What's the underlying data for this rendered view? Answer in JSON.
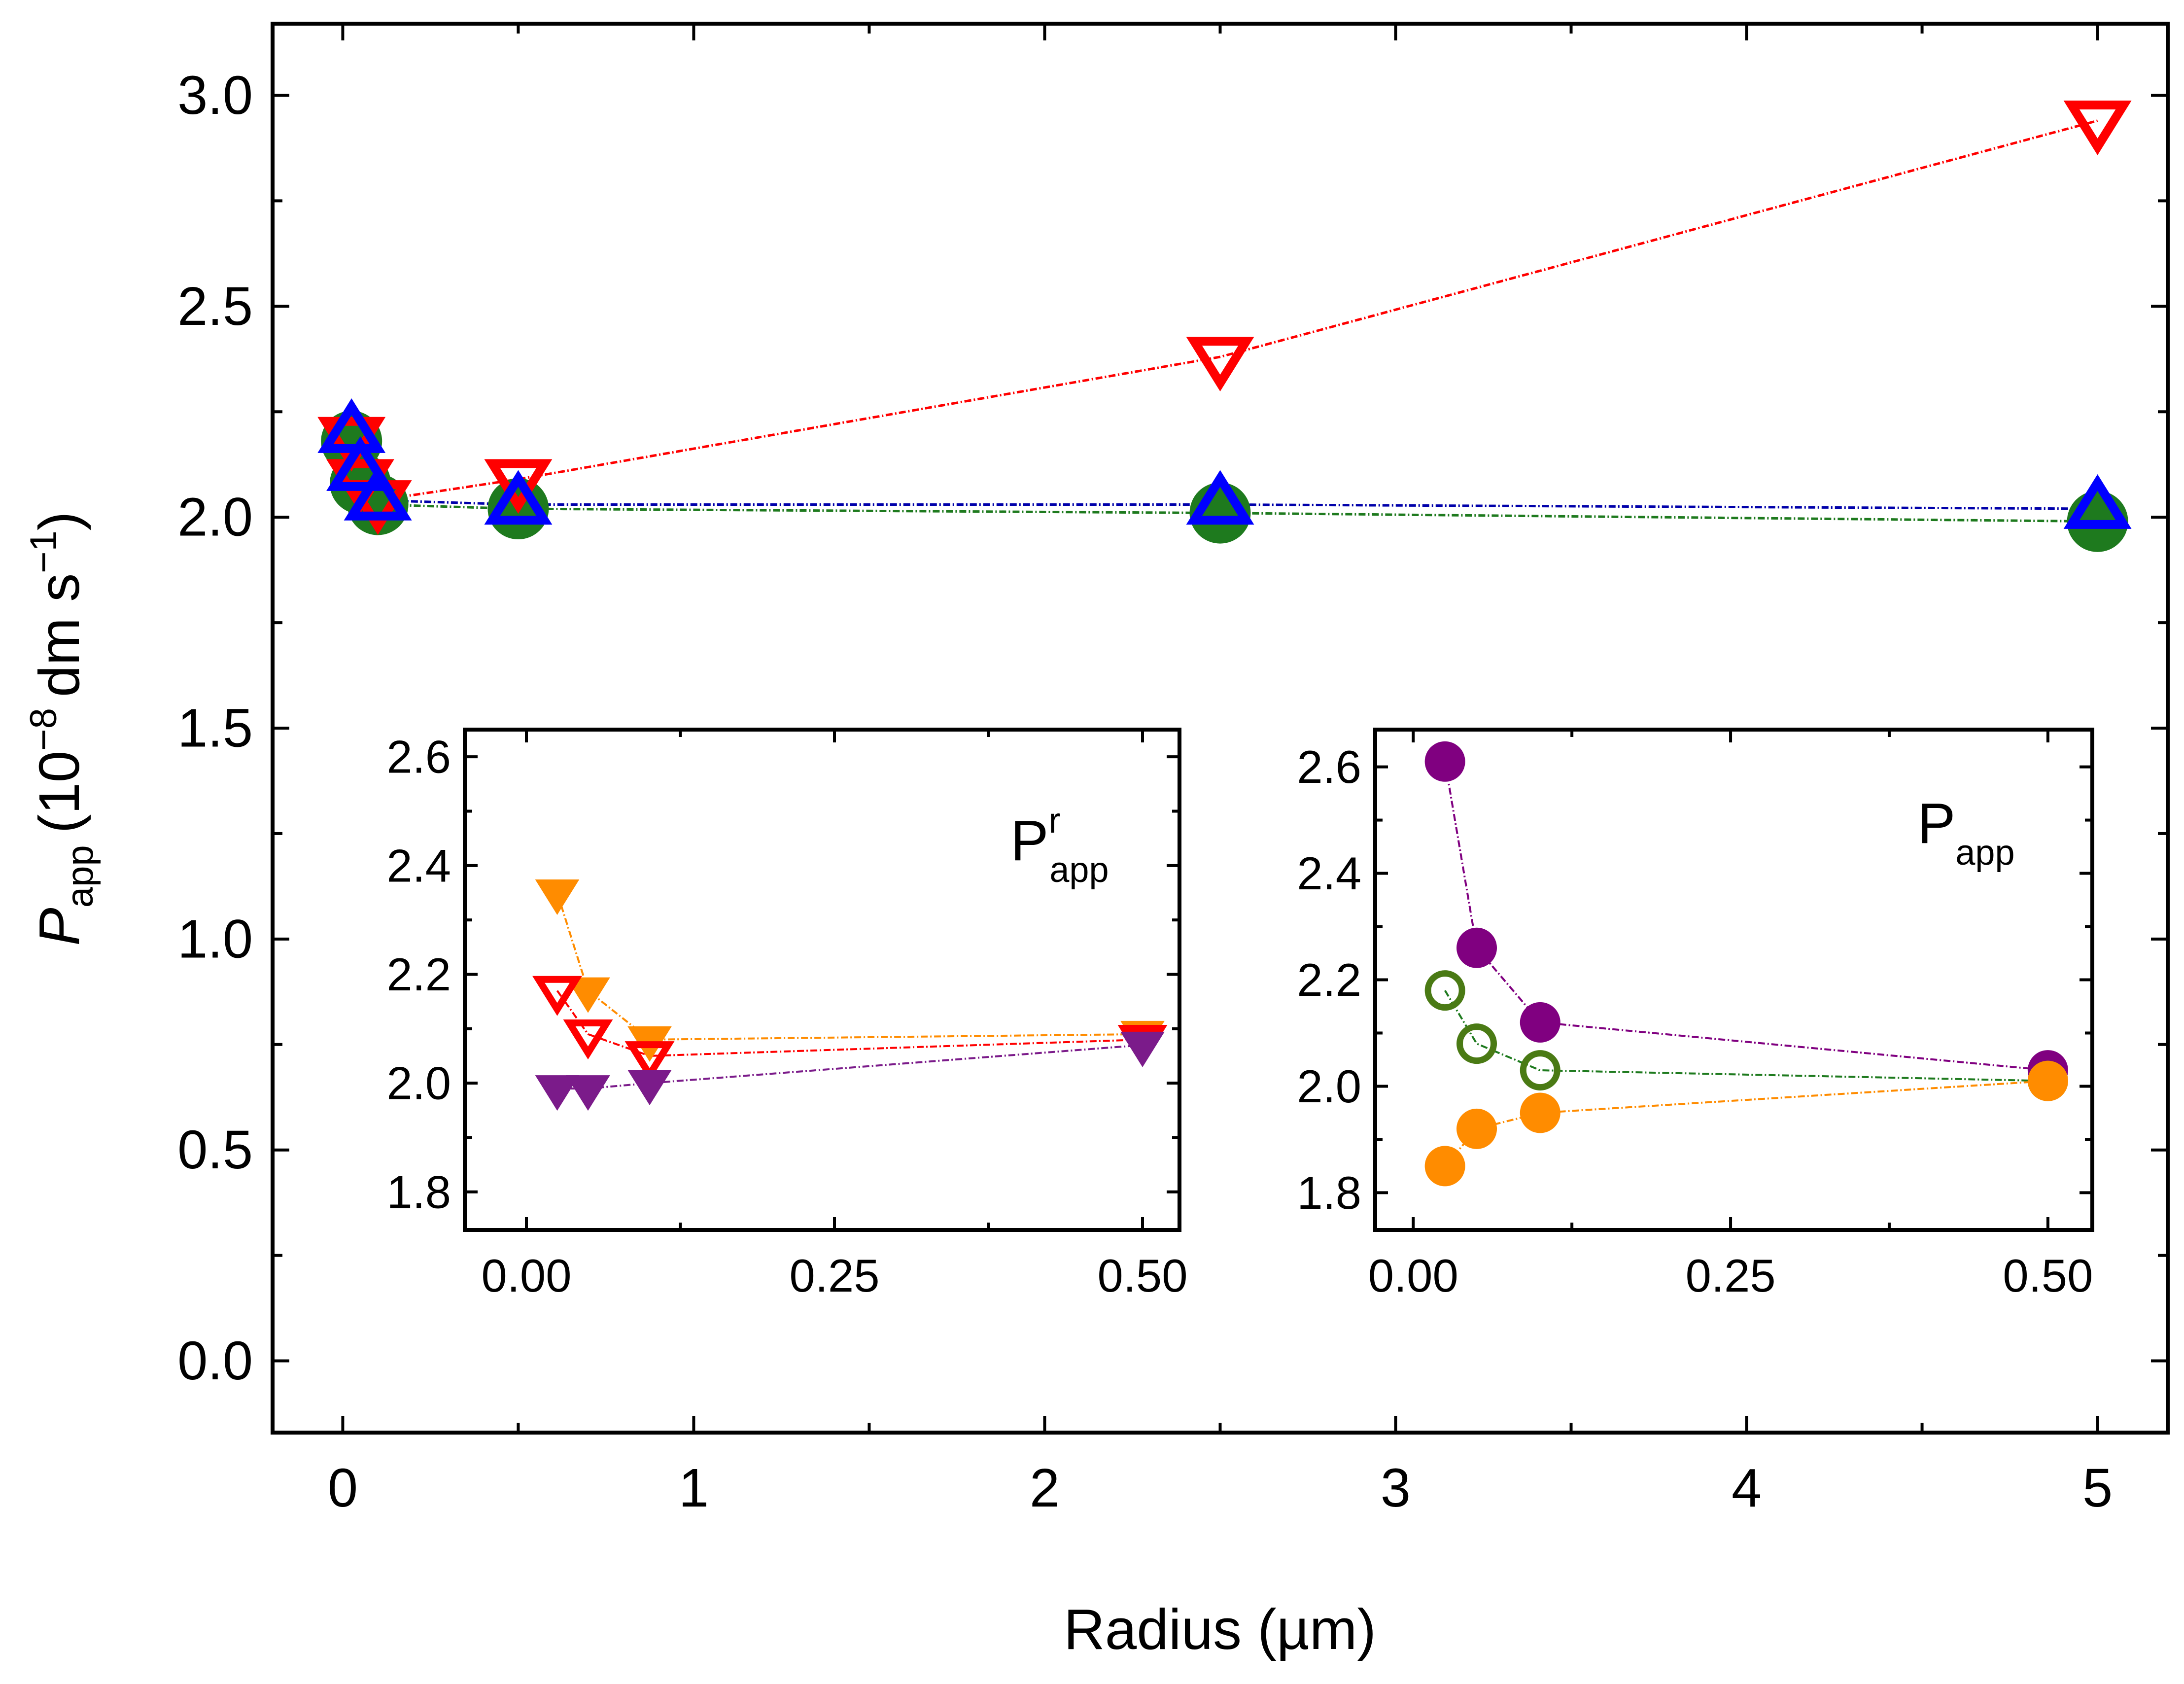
{
  "chart_data": [
    {
      "type": "line",
      "role": "main",
      "xlabel": "Radius (µm)",
      "ylabel": {
        "symbol": "P",
        "sub": "app",
        "unit": "(10",
        "exponent": "−8",
        "unit_tail": "dm s",
        "unit_exponent": "−1",
        "close": ")"
      },
      "xlim": [
        -0.2,
        5.2
      ],
      "ylim": [
        -0.17,
        3.17
      ],
      "xticks": [
        0,
        1,
        2,
        3,
        4,
        5
      ],
      "xtick_labels": [
        "0",
        "1",
        "2",
        "3",
        "4",
        "5"
      ],
      "yticks": [
        0.0,
        0.5,
        1.0,
        1.5,
        2.0,
        2.5,
        3.0
      ],
      "ytick_labels": [
        "0.0",
        "0.5",
        "1.0",
        "1.5",
        "2.0",
        "2.5",
        "3.0"
      ],
      "grid": false,
      "series": [
        {
          "marker": "circle-filled",
          "color": "#1e7a1e",
          "line_color": "#1e7a1e",
          "x": [
            0.025,
            0.05,
            0.1,
            0.5,
            2.5,
            5.0
          ],
          "y": [
            2.18,
            2.08,
            2.03,
            2.02,
            2.01,
            1.99
          ]
        },
        {
          "marker": "triangle-down-open",
          "color": "#ff0000",
          "line_color": "#ff0000",
          "x": [
            0.025,
            0.05,
            0.1,
            0.5,
            2.5,
            5.0
          ],
          "y": [
            2.19,
            2.09,
            2.04,
            2.09,
            2.38,
            2.94
          ]
        },
        {
          "marker": "triangle-up-open",
          "color": "#0000ff",
          "line_color": "#0000aa",
          "x": [
            0.025,
            0.05,
            0.1,
            0.5,
            2.5,
            5.0
          ],
          "y": [
            2.2,
            2.11,
            2.04,
            2.03,
            2.03,
            2.02
          ]
        }
      ]
    },
    {
      "type": "line",
      "role": "inset-left",
      "label": "P",
      "label_sup": "r",
      "label_sub": "app",
      "xlim": [
        -0.05,
        0.53
      ],
      "ylim": [
        1.73,
        2.65
      ],
      "xticks": [
        0,
        0.25,
        0.5
      ],
      "xtick_labels": [
        "0.00",
        "0.25",
        "0.50"
      ],
      "yticks": [
        1.8,
        2.0,
        2.2,
        2.4,
        2.6
      ],
      "ytick_labels": [
        "1.8",
        "2.0",
        "2.2",
        "2.4",
        "2.6"
      ],
      "series": [
        {
          "marker": "triangle-down-filled",
          "color": "#ff8c00",
          "line_color": "#ff8c00",
          "x": [
            0.025,
            0.05,
            0.1,
            0.5
          ],
          "y": [
            2.35,
            2.17,
            2.08,
            2.09
          ]
        },
        {
          "marker": "triangle-down-open",
          "color": "#ff0000",
          "line_color": "#ff0000",
          "x": [
            0.025,
            0.05,
            0.1,
            0.5
          ],
          "y": [
            2.17,
            2.09,
            2.05,
            2.08
          ]
        },
        {
          "marker": "triangle-down-filled",
          "color": "#7b1b8a",
          "line_color": "#7b1b8a",
          "x": [
            0.025,
            0.05,
            0.1,
            0.5
          ],
          "y": [
            1.99,
            1.99,
            2.0,
            2.07
          ]
        }
      ]
    },
    {
      "type": "line",
      "role": "inset-right",
      "label": "P",
      "label_sub": "app",
      "xlim": [
        -0.03,
        0.535
      ],
      "ylim": [
        1.73,
        2.67
      ],
      "xticks": [
        0,
        0.25,
        0.5
      ],
      "xtick_labels": [
        "0.00",
        "0.25",
        "0.50"
      ],
      "yticks": [
        1.8,
        2.0,
        2.2,
        2.4,
        2.6
      ],
      "ytick_labels": [
        "1.8",
        "2.0",
        "2.2",
        "2.4",
        "2.6"
      ],
      "series": [
        {
          "marker": "circle-filled",
          "color": "#800080",
          "line_color": "#800080",
          "x": [
            0.025,
            0.05,
            0.1,
            0.5
          ],
          "y": [
            2.61,
            2.26,
            2.12,
            2.03
          ]
        },
        {
          "marker": "circle-open",
          "color": "#4a7a14",
          "line_color": "#1e7a1e",
          "x": [
            0.025,
            0.05,
            0.1,
            0.5
          ],
          "y": [
            2.18,
            2.08,
            2.03,
            2.01
          ]
        },
        {
          "marker": "circle-filled",
          "color": "#ff8c00",
          "line_color": "#ff8c00",
          "x": [
            0.025,
            0.05,
            0.1,
            0.5
          ],
          "y": [
            1.85,
            1.92,
            1.95,
            2.01
          ]
        }
      ]
    }
  ]
}
